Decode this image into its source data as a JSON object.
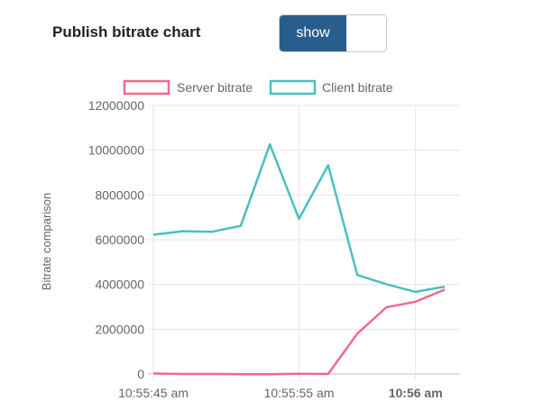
{
  "header": {
    "title": "Publish bitrate chart",
    "toggle_label": "show",
    "toggle_color": "#285e8e"
  },
  "chart_data": {
    "type": "line",
    "ylabel": "Bitrate comparison",
    "ylim": [
      0,
      12000000
    ],
    "y_ticks": [
      0,
      2000000,
      4000000,
      6000000,
      8000000,
      10000000,
      12000000
    ],
    "y_tick_labels": [
      "0",
      "2000000",
      "4000000",
      "6000000",
      "8000000",
      "10000000",
      "12000000"
    ],
    "x_ticks": [
      {
        "label": "10:55:45 am",
        "index": 0,
        "bold": false
      },
      {
        "label": "10:55:55 am",
        "index": 5,
        "bold": false
      },
      {
        "label": "10:56 am",
        "index": 9,
        "bold": true
      }
    ],
    "grid": true,
    "legend_position": "top",
    "series": [
      {
        "name": "Server bitrate",
        "color": "#f06a8d",
        "values": [
          20000,
          0,
          0,
          -10000,
          -10000,
          10000,
          0,
          1800000,
          2980000,
          3230000,
          3770000
        ]
      },
      {
        "name": "Client bitrate",
        "color": "#4bbfbf",
        "values": [
          6220000,
          6380000,
          6350000,
          6620000,
          10260000,
          6930000,
          9330000,
          4420000,
          4010000,
          3670000,
          3900000
        ]
      }
    ]
  }
}
